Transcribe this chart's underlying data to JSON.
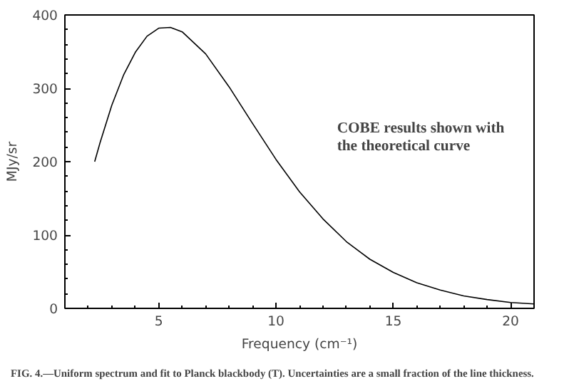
{
  "chart_data": {
    "type": "line",
    "xlabel": "Frequency (cm⁻¹)",
    "ylabel": "MJy/sr",
    "x": [
      2.27,
      2.5,
      3,
      3.5,
      4,
      4.5,
      5,
      5.5,
      6,
      7,
      8,
      9,
      10,
      11,
      12,
      13,
      14,
      15,
      16,
      17,
      18,
      19,
      20,
      21
    ],
    "series": [
      {
        "color": "#000000",
        "values": [
          200,
          226,
          277,
          318,
          349,
          371,
          382,
          383,
          377,
          347,
          302,
          252,
          203,
          159,
          122,
          91,
          67,
          49,
          35,
          25,
          17,
          12,
          8,
          6
        ]
      }
    ],
    "xlim": [
      1,
      21
    ],
    "ylim": [
      0,
      400
    ],
    "xticks": [
      5,
      10,
      15,
      20
    ],
    "yticks": [
      0,
      100,
      200,
      300,
      400
    ],
    "grid": false,
    "marker": "none",
    "line_style": "solid",
    "annotations": [
      "COBE results shown with the theoretical curve",
      "FIG. 4.—Uniform spectrum and fit to Planck blackbody (T). Uncertainties are a small fraction of the line thickness."
    ]
  }
}
